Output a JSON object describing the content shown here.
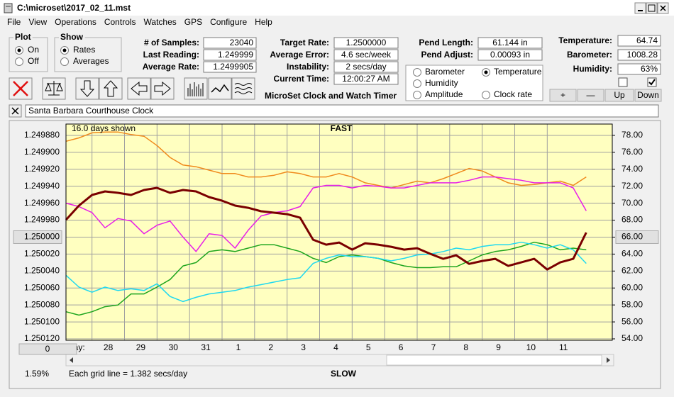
{
  "window": {
    "title": "C:\\microset\\2017_02_11.mst"
  },
  "menu": [
    "File",
    "View",
    "Operations",
    "Controls",
    "Watches",
    "GPS",
    "Configure",
    "Help"
  ],
  "plot_group": {
    "title": "Plot",
    "options": [
      "On",
      "Off"
    ]
  },
  "show_group": {
    "title": "Show",
    "options": [
      "Rates",
      "Averages"
    ]
  },
  "stats": [
    {
      "label": "# of Samples:",
      "value": "23040"
    },
    {
      "label": "Last Reading:",
      "value": "1.249999"
    },
    {
      "label": "Average Rate:",
      "value": "1.2499905"
    }
  ],
  "timing": [
    {
      "label": "Target Rate:",
      "value": "1.2500000"
    },
    {
      "label": "Average Error:",
      "value": "4.6 sec/week"
    },
    {
      "label": "Instability:",
      "value": "2 secs/day"
    },
    {
      "label": "Current Time:",
      "value": "12:00:27 AM"
    }
  ],
  "pendulum": [
    {
      "label": "Pend Length:",
      "value": "61.144 in"
    },
    {
      "label": "Pend Adjust:",
      "value": "0.00093 in"
    }
  ],
  "environment": [
    {
      "label": "Temperature:",
      "value": "64.74"
    },
    {
      "label": "Barometer:",
      "value": "1008.28"
    },
    {
      "label": "Humidity:",
      "value": "63%"
    }
  ],
  "app_label": "MicroSet Clock and Watch Timer",
  "adjust_buttons": [
    "+",
    "—",
    "Up",
    "Down"
  ],
  "clock_name": "Santa Barbara Courthouse Clock",
  "chart_data": {
    "type": "line",
    "top_label": "FAST",
    "bottom_label": "SLOW",
    "days_shown": "16.0 days shown",
    "x_label": "Day:",
    "grid_note": "Each grid line = 1.382 secs/day",
    "scale_note": "1.59%",
    "offset_button": "0",
    "grid": true,
    "x": [
      0,
      0.4,
      0.8,
      1.2,
      1.6,
      2,
      2.4,
      2.8,
      3.2,
      3.6,
      4,
      4.4,
      4.8,
      5.2,
      5.6,
      6,
      6.4,
      6.8,
      7.2,
      7.6,
      8,
      8.4,
      8.8,
      9.2,
      9.6,
      10,
      10.4,
      10.8,
      11.2,
      11.6,
      12,
      12.4,
      12.8,
      13.2,
      13.6,
      14,
      14.4,
      14.8,
      15.2,
      15.6,
      16
    ],
    "xlim": [
      0,
      16.8
    ],
    "xticks": [
      {
        "value": 0.8,
        "label": "28"
      },
      {
        "value": 1.8,
        "label": "29"
      },
      {
        "value": 2.8,
        "label": "30"
      },
      {
        "value": 3.8,
        "label": "31"
      },
      {
        "value": 4.8,
        "label": "1"
      },
      {
        "value": 5.8,
        "label": "2"
      },
      {
        "value": 6.8,
        "label": "3"
      },
      {
        "value": 7.8,
        "label": "4"
      },
      {
        "value": 8.8,
        "label": "5"
      },
      {
        "value": 9.8,
        "label": "6"
      },
      {
        "value": 10.8,
        "label": "7"
      },
      {
        "value": 11.8,
        "label": "8"
      },
      {
        "value": 12.8,
        "label": "9"
      },
      {
        "value": 13.8,
        "label": "10"
      },
      {
        "value": 14.8,
        "label": "11"
      }
    ],
    "ylim": [
      1.25012,
      1.24987
    ],
    "yticks": [
      {
        "value": 1.24988,
        "label": "1.249880"
      },
      {
        "value": 1.2499,
        "label": "1.249900"
      },
      {
        "value": 1.24992,
        "label": "1.249920"
      },
      {
        "value": 1.24994,
        "label": "1.249940"
      },
      {
        "value": 1.24996,
        "label": "1.249960"
      },
      {
        "value": 1.24998,
        "label": "1.249980"
      },
      {
        "value": 1.25,
        "label": "1.250000"
      },
      {
        "value": 1.25002,
        "label": "1.250020"
      },
      {
        "value": 1.25004,
        "label": "1.250040"
      },
      {
        "value": 1.25006,
        "label": "1.250060"
      },
      {
        "value": 1.25008,
        "label": "1.250080"
      },
      {
        "value": 1.2501,
        "label": "1.250100"
      },
      {
        "value": 1.25012,
        "label": "1.250120"
      }
    ],
    "y2lim": [
      54,
      79
    ],
    "y2ticks": [
      {
        "value": 78,
        "label": "78.00"
      },
      {
        "value": 76,
        "label": "76.00"
      },
      {
        "value": 74,
        "label": "74.00"
      },
      {
        "value": 72,
        "label": "72.00"
      },
      {
        "value": 70,
        "label": "70.00"
      },
      {
        "value": 68,
        "label": "68.00"
      },
      {
        "value": 66,
        "label": "66.00"
      },
      {
        "value": 64,
        "label": "64.00"
      },
      {
        "value": 62,
        "label": "62.00"
      },
      {
        "value": 60,
        "label": "60.00"
      },
      {
        "value": 58,
        "label": "58.00"
      },
      {
        "value": 56,
        "label": "56.00"
      },
      {
        "value": 54,
        "label": "54.00"
      }
    ],
    "series": [
      {
        "name": "Barometer",
        "color": "#f08a1c",
        "axis": "y2",
        "values": [
          77.3,
          77.7,
          78.3,
          78.4,
          78.4,
          78.1,
          77.9,
          76.8,
          75.4,
          74.5,
          74.3,
          73.9,
          73.5,
          73.5,
          73.1,
          73.1,
          73.3,
          73.7,
          73.5,
          73.1,
          73.1,
          73.5,
          73.1,
          72.4,
          72.1,
          71.8,
          72.2,
          72.6,
          72.4,
          72.9,
          73.5,
          74.1,
          73.8,
          73.1,
          72.4,
          72.1,
          72.2,
          72.4,
          72.6,
          72.1,
          73.1
        ]
      },
      {
        "name": "Temperature",
        "color": "#1ea51e",
        "axis": "y2",
        "values": [
          57.2,
          56.8,
          57.2,
          57.8,
          58.0,
          59.3,
          59.3,
          60.1,
          61.0,
          62.6,
          63.0,
          64.3,
          64.5,
          64.3,
          64.7,
          65.1,
          65.1,
          64.7,
          64.3,
          63.5,
          63.0,
          63.7,
          63.9,
          63.7,
          63.5,
          63.0,
          62.6,
          62.4,
          62.4,
          62.5,
          62.5,
          63.2,
          63.9,
          64.3,
          64.5,
          64.9,
          65.4,
          65.1,
          64.5,
          64.7,
          64.5
        ]
      },
      {
        "name": "Humidity",
        "color": "#e81ee8",
        "axis": "y2",
        "values": [
          70.0,
          69.6,
          68.9,
          67.1,
          68.2,
          67.9,
          66.4,
          67.4,
          67.9,
          66.0,
          64.3,
          66.4,
          66.2,
          64.7,
          66.8,
          68.5,
          68.9,
          69.1,
          69.6,
          71.8,
          72.1,
          72.1,
          71.8,
          72.1,
          72.0,
          71.8,
          71.8,
          72.1,
          72.4,
          72.4,
          72.4,
          72.7,
          73.1,
          73.1,
          72.9,
          72.7,
          72.4,
          72.4,
          72.4,
          71.8,
          69.1
        ]
      },
      {
        "name": "Amplitude",
        "color": "#1ed8f0",
        "axis": "y2",
        "values": [
          61.5,
          60.1,
          59.5,
          60.1,
          59.7,
          59.9,
          59.7,
          60.5,
          59.0,
          58.4,
          58.9,
          59.3,
          59.5,
          59.7,
          60.1,
          60.4,
          60.7,
          61.0,
          61.2,
          62.9,
          63.5,
          63.9,
          63.7,
          63.7,
          63.5,
          63.2,
          63.5,
          63.9,
          64.0,
          64.3,
          64.7,
          64.5,
          64.9,
          65.1,
          65.1,
          65.4,
          65.1,
          64.7,
          65.1,
          64.5,
          62.9
        ]
      },
      {
        "name": "Clock rate",
        "color": "#7a0000",
        "axis": "y",
        "values": [
          1.2499796,
          1.2499628,
          1.2499503,
          1.2499461,
          1.2499478,
          1.2499503,
          1.2499444,
          1.2499419,
          1.2499478,
          1.2499444,
          1.2499461,
          1.2499528,
          1.249957,
          1.2499628,
          1.2499654,
          1.2499695,
          1.2499712,
          1.2499729,
          1.2499771,
          1.250003,
          1.2500089,
          1.2500064,
          1.2500147,
          1.2500072,
          1.2500089,
          1.2500114,
          1.2500147,
          1.2500131,
          1.2500197,
          1.2500256,
          1.2500214,
          1.2500315,
          1.2500281,
          1.2500256,
          1.250034,
          1.2500298,
          1.2500256,
          1.2500382,
          1.2500298,
          1.2500256,
          1.2499946
        ]
      }
    ]
  }
}
